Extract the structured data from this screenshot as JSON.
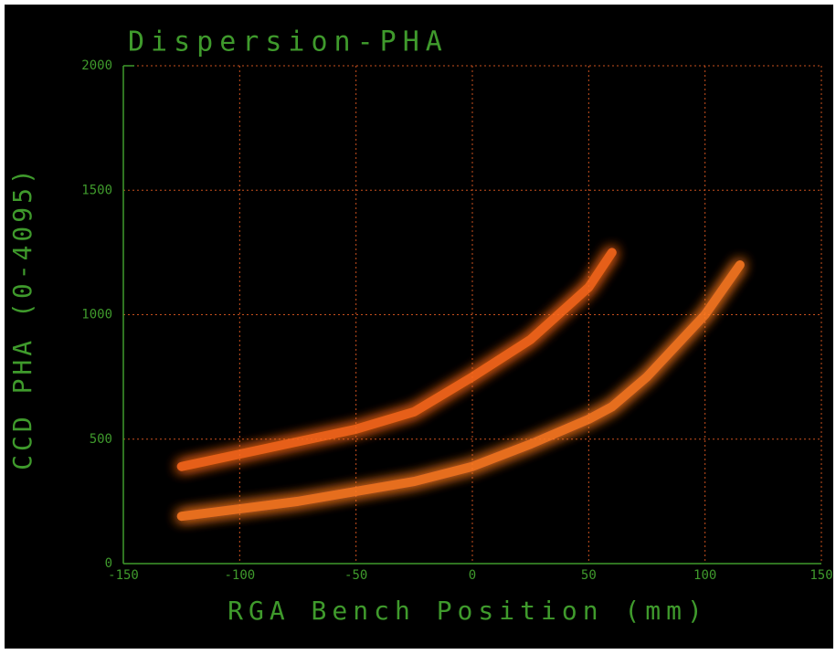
{
  "chart_data": {
    "type": "line",
    "title": "Dispersion-PHA",
    "x_label": "RGA Bench Position (mm)",
    "y_label": "CCD PHA (0-4095)",
    "x": [
      -125,
      -100,
      -75,
      -50,
      -25,
      0,
      25,
      50,
      60,
      75,
      100,
      115
    ],
    "series": [
      {
        "color": "#ff6a1a",
        "values": [
          390,
          440,
          490,
          540,
          610,
          750,
          900,
          1110,
          1250,
          null,
          null,
          null
        ]
      },
      {
        "color": "#ff7a22",
        "values": [
          190,
          220,
          250,
          290,
          330,
          390,
          480,
          580,
          630,
          750,
          1000,
          1200
        ]
      }
    ],
    "xlim": [
      -150,
      150
    ],
    "xticks": [
      -150,
      -100,
      -50,
      0,
      50,
      100,
      150
    ],
    "ylim": [
      0,
      2000
    ],
    "yticks": [
      0,
      500,
      1000,
      1500,
      2000
    ],
    "grid": true,
    "grid_color": "#c8501e",
    "axis_color": "#3f9a2c"
  }
}
